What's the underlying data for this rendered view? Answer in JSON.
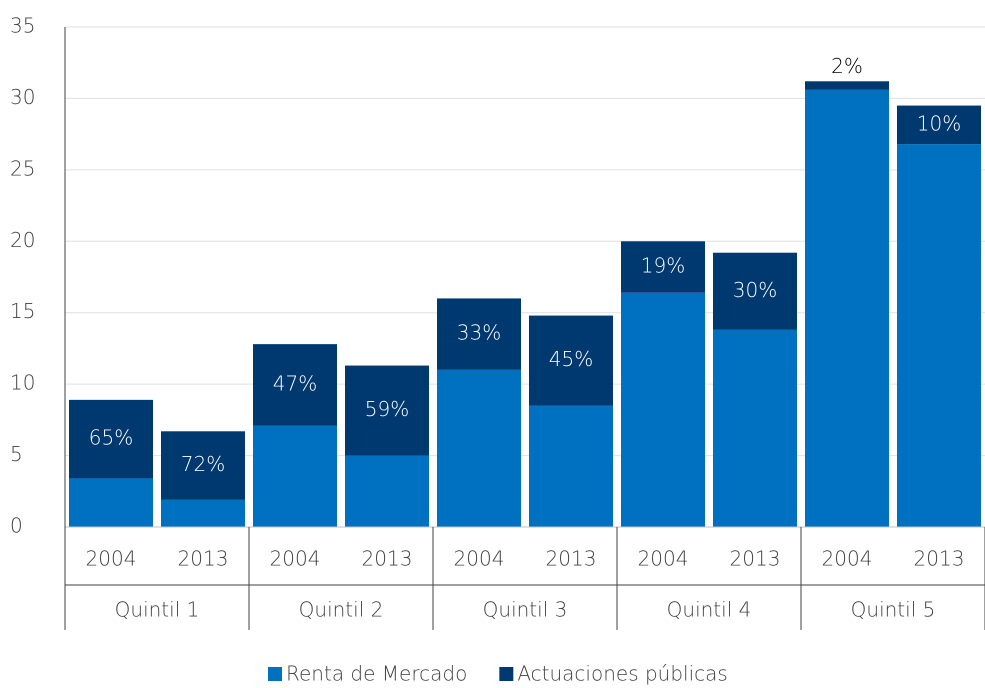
{
  "chart_data": {
    "type": "stacked-bar",
    "categories": [
      "2004",
      "2013",
      "2004",
      "2013",
      "2004",
      "2013",
      "2004",
      "2013",
      "2004",
      "2013"
    ],
    "groups": [
      "Quintil 1",
      "Quintil 2",
      "Quintil 3",
      "Quintil 4",
      "Quintil 5"
    ],
    "series": [
      {
        "name": "Renta de Mercado",
        "color": "#0070c0",
        "values": [
          3.4,
          1.9,
          7.1,
          5.0,
          11.0,
          8.5,
          16.4,
          13.8,
          30.6,
          26.8
        ]
      },
      {
        "name": "Actuaciones públicas",
        "color": "#003870",
        "values": [
          5.5,
          4.8,
          5.7,
          6.3,
          5.0,
          6.3,
          3.6,
          5.4,
          0.6,
          2.7
        ]
      }
    ],
    "share_labels": [
      "65%",
      "72%",
      "47%",
      "59%",
      "33%",
      "45%",
      "19%",
      "30%",
      "2%",
      "10%"
    ],
    "ylim": [
      0,
      35
    ],
    "yticks": [
      0,
      5,
      10,
      15,
      20,
      25,
      30,
      35
    ],
    "grid": true,
    "legend": "bottom"
  }
}
